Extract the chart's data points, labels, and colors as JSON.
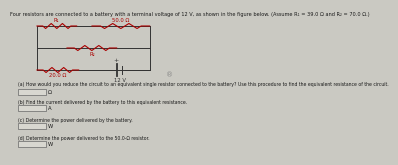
{
  "title_text": "Four resistors are connected to a battery with a terminal voltage of 12 V, as shown in the figure below. (Assume R₁ = 39.0 Ω and R₂ = 70.0 Ω.)",
  "labels": {
    "R1": "R₁",
    "R2": "R₂",
    "50ohm": "50.0 Ω",
    "20ohm": "20.0 Ω",
    "battery": "12 V"
  },
  "questions": [
    "(a) How would you reduce the circuit to an equivalent single resistor connected to the battery? Use this procedure to find the equivalent resistance of the circuit.",
    "(b) Find the current delivered by the battery to this equivalent resistance.",
    "(c) Determine the power delivered by the battery.",
    "(d) Determine the power delivered to the 50.0-Ω resistor."
  ],
  "answer_units": [
    "Ω",
    "A",
    "W",
    "W"
  ],
  "bg_color": "#cac9c2",
  "text_color": "#1a1a1a",
  "resistor_color": "#aa0000",
  "circuit_line_color": "#333333",
  "box_color": "#b8b7b0"
}
